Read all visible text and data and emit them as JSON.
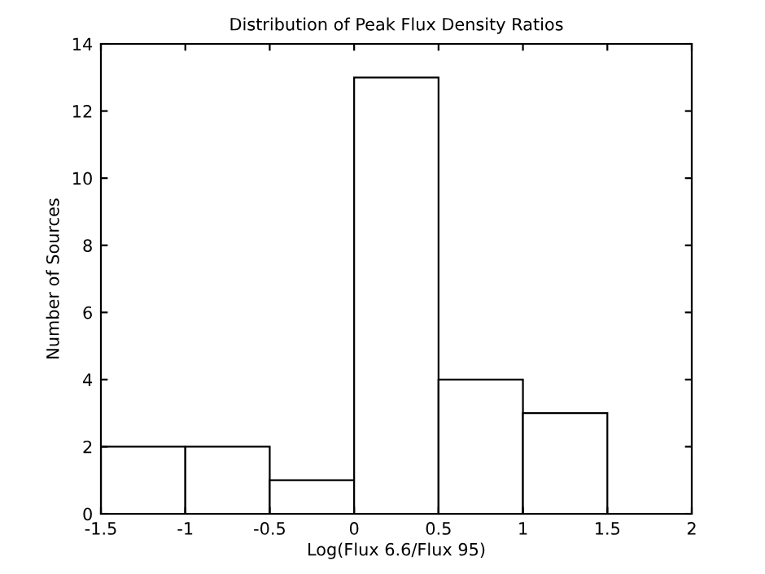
{
  "chart_data": {
    "type": "histogram",
    "title": "Distribution of Peak Flux Density Ratios",
    "xlabel": "Log(Flux 6.6/Flux 95)",
    "ylabel": "Number of Sources",
    "bins": [
      -1.5,
      -1,
      -0.5,
      0,
      0.5,
      1,
      1.5
    ],
    "values": [
      2,
      2,
      1,
      13,
      4,
      3
    ],
    "color": "#ffffff",
    "xlim": [
      -1.5,
      2
    ],
    "xticks": [
      -1.5,
      -1,
      -0.5,
      0,
      0.5,
      1,
      1.5,
      2
    ],
    "ylim": [
      0,
      14
    ],
    "yticks": [
      0,
      2,
      4,
      6,
      8,
      10,
      12,
      14
    ],
    "grid": false
  }
}
